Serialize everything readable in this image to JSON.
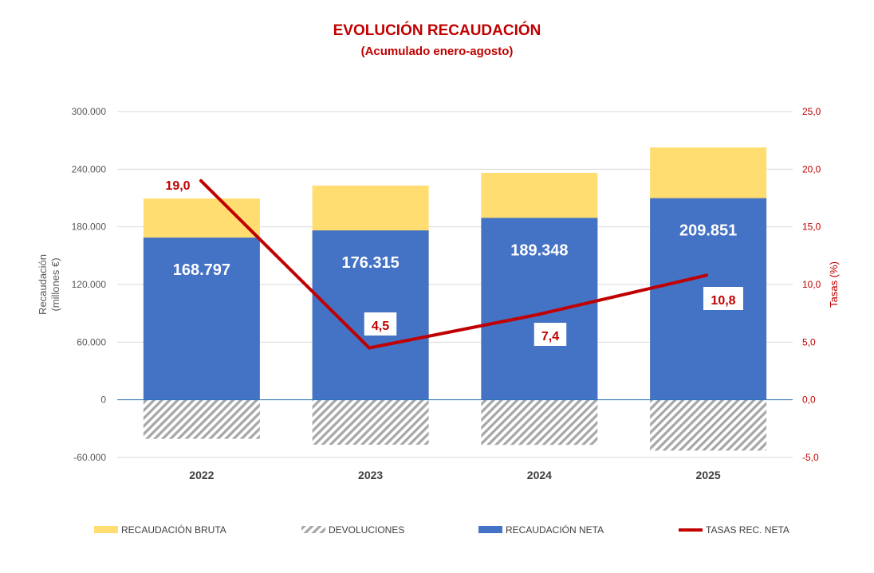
{
  "chart_data": {
    "type": "bar",
    "title": "EVOLUCIÓN RECAUDACIÓN",
    "subtitle": "(Acumulado enero-agosto)",
    "categories": [
      "2022",
      "2023",
      "2024",
      "2025"
    ],
    "series": [
      {
        "name": "RECAUDACIÓN BRUTA",
        "kind": "stacked-bar",
        "color": "#ffdd71",
        "values": [
          209500,
          223000,
          236200,
          262700
        ]
      },
      {
        "name": "DEVOLUCIONES",
        "kind": "hatched-bar",
        "color": "#a6a6a6",
        "values": [
          -40700,
          -46700,
          -46900,
          -52900
        ]
      },
      {
        "name": "RECAUDACIÓN NETA",
        "kind": "bar",
        "color": "#4472c4",
        "values": [
          168797,
          176315,
          189348,
          209851
        ],
        "labels": [
          "168.797",
          "176.315",
          "189.348",
          "209.851"
        ]
      },
      {
        "name": "TASAS REC. NETA",
        "kind": "line",
        "axis": "right",
        "color": "#c00000",
        "values": [
          19.0,
          4.5,
          7.4,
          10.8
        ],
        "labels": [
          "19,0",
          "4,5",
          "7,4",
          "10,8"
        ]
      }
    ],
    "y_left": {
      "label": "Recaudación\n(millones €)",
      "ylim": [
        -60000,
        300000
      ],
      "ticks": [
        "-60.000",
        "0",
        "60.000",
        "120.000",
        "180.000",
        "240.000",
        "300.000"
      ]
    },
    "y_right": {
      "label": "Tasas (%)",
      "ylim": [
        -5,
        25
      ],
      "ticks": [
        "-5,0",
        "0,0",
        "5,0",
        "10,0",
        "15,0",
        "20,0",
        "25,0"
      ]
    },
    "grid": true,
    "legend_position": "bottom"
  }
}
